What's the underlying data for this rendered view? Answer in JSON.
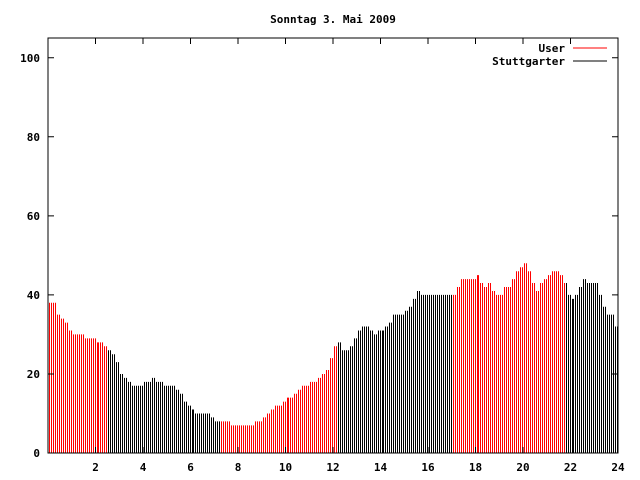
{
  "chart_data": {
    "type": "bar",
    "title": "Sonntag 3. Mai 2009",
    "xlabel": "",
    "ylabel": "",
    "xlim": [
      0,
      24
    ],
    "ylim": [
      0,
      105
    ],
    "x_step_hours": 0.16667,
    "xticks": [
      "2",
      "4",
      "6",
      "8",
      "10",
      "12",
      "14",
      "16",
      "18",
      "20",
      "22",
      "24"
    ],
    "yticks": [
      "0",
      "20",
      "40",
      "60",
      "80",
      "100"
    ],
    "legend_position": "top-right",
    "series": [
      {
        "name": "User",
        "color": "#ff0000",
        "ranges": [
          [
            0,
            2.5
          ],
          [
            7.2,
            12.1
          ],
          [
            17,
            21.7
          ]
        ]
      },
      {
        "name": "Stuttgarter",
        "color": "#000000",
        "ranges": [
          [
            2.5,
            7.2
          ],
          [
            12.1,
            17
          ],
          [
            21.7,
            24
          ]
        ]
      }
    ],
    "values": [
      38,
      38,
      35,
      34,
      33,
      31,
      30,
      30,
      30,
      29,
      29,
      29,
      28,
      28,
      27,
      26,
      25,
      23,
      20,
      19,
      18,
      17,
      17,
      17,
      18,
      18,
      19,
      18,
      18,
      17,
      17,
      17,
      16,
      15,
      13,
      12,
      11,
      10,
      10,
      10,
      10,
      9,
      8,
      8,
      8,
      8,
      7,
      7,
      7,
      7,
      7,
      7,
      8,
      8,
      9,
      10,
      11,
      12,
      12,
      13,
      14,
      14,
      15,
      16,
      17,
      17,
      18,
      18,
      19,
      20,
      21,
      24,
      27,
      28,
      26,
      26,
      27,
      29,
      31,
      32,
      32,
      31,
      30,
      31,
      31,
      32,
      33,
      35,
      35,
      35,
      36,
      37,
      39,
      41,
      40,
      40,
      40,
      40,
      40,
      40,
      40,
      40,
      40,
      42,
      44,
      44,
      44,
      44,
      45,
      43,
      42,
      43,
      41,
      40,
      40,
      42,
      42,
      44,
      46,
      47,
      48,
      46,
      43,
      41,
      43,
      44,
      45,
      46,
      46,
      45,
      43,
      40,
      39,
      40,
      42,
      44,
      43,
      43,
      43,
      40,
      37,
      35,
      35,
      32
    ]
  }
}
